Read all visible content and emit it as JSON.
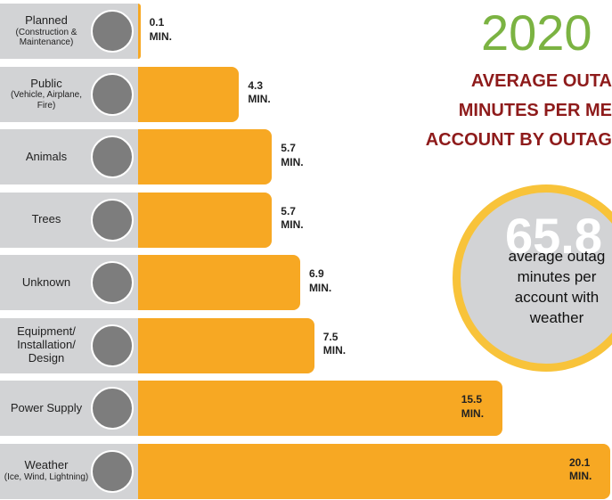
{
  "chart_data": {
    "type": "bar",
    "orientation": "horizontal",
    "title": "2020",
    "subtitle_lines": [
      "AVERAGE OUTA",
      "MINUTES PER ME",
      "ACCOUNT BY OUTAG"
    ],
    "categories": [
      "Planned",
      "Public",
      "Animals",
      "Trees",
      "Unknown",
      "Equipment/ Installation/ Design",
      "Power Supply",
      "Weather"
    ],
    "category_details": [
      "(Construction & Maintenance)",
      "(Vehicle, Airplane, Fire)",
      null,
      null,
      null,
      null,
      null,
      "(Ice, Wind, Lightning)"
    ],
    "values": [
      0.1,
      4.3,
      5.7,
      5.7,
      6.9,
      7.5,
      15.5,
      20.1
    ],
    "value_labels": [
      "0.1 MIN.",
      "4.3 MIN.",
      "5.7 MIN.",
      "5.7 MIN.",
      "6.9 MIN.",
      "7.5 MIN.",
      "15.5 MIN.",
      "20.1 MIN."
    ],
    "color": "#f7a823",
    "highlight": {
      "value_label": "65.8",
      "note_lines": [
        "average outag",
        "minutes per",
        "account with",
        "weather"
      ]
    }
  }
}
